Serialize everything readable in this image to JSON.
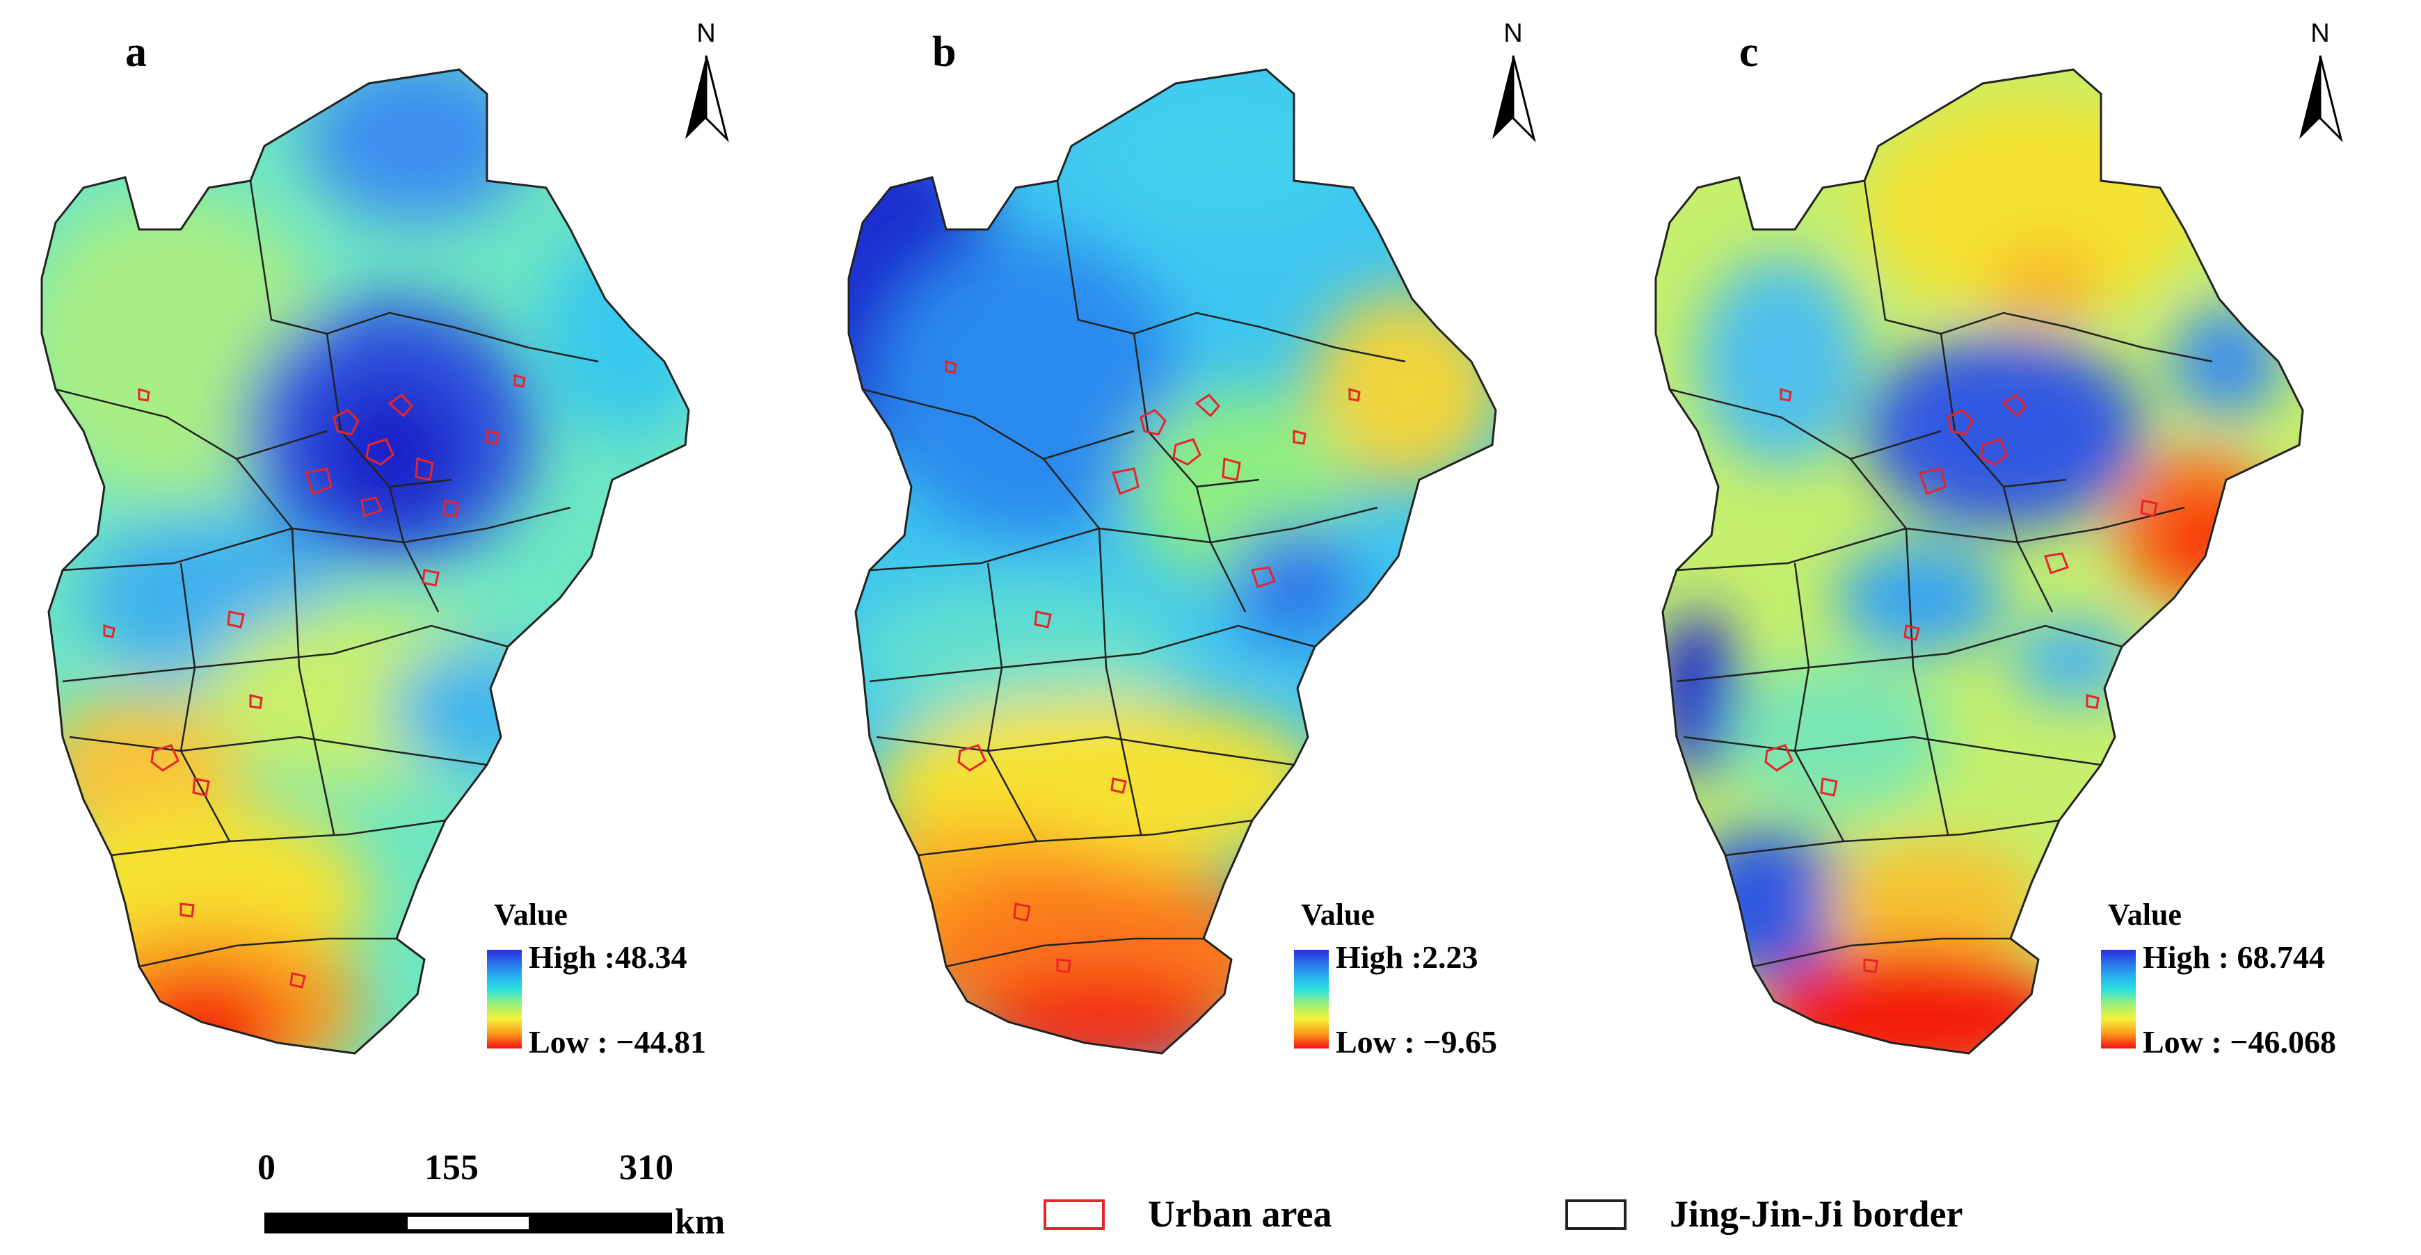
{
  "panels": [
    {
      "id": "a",
      "label": "a",
      "north": "N",
      "legend": {
        "title": "Value",
        "high_prefix": "High :",
        "high": "48.34",
        "low_prefix": "Low : ",
        "low": "−44.81"
      }
    },
    {
      "id": "b",
      "label": "b",
      "north": "N",
      "legend": {
        "title": "Value",
        "high_prefix": "High :",
        "high": "2.23",
        "low_prefix": "Low : ",
        "low": "−9.65"
      }
    },
    {
      "id": "c",
      "label": "c",
      "north": "N",
      "legend": {
        "title": "Value",
        "high_prefix": "High : ",
        "high": "68.744",
        "low_prefix": "Low : ",
        "low": "−46.068"
      }
    }
  ],
  "scalebar": {
    "ticks": [
      "0",
      "155",
      "310"
    ],
    "unit": "km"
  },
  "map_legend": {
    "urban_area": "Urban area",
    "border": "Jing-Jin-Ji border"
  },
  "colors": {
    "high": "#2b2ee0",
    "low": "#f31010",
    "urban": "#e8232a",
    "border": "#222222"
  }
}
